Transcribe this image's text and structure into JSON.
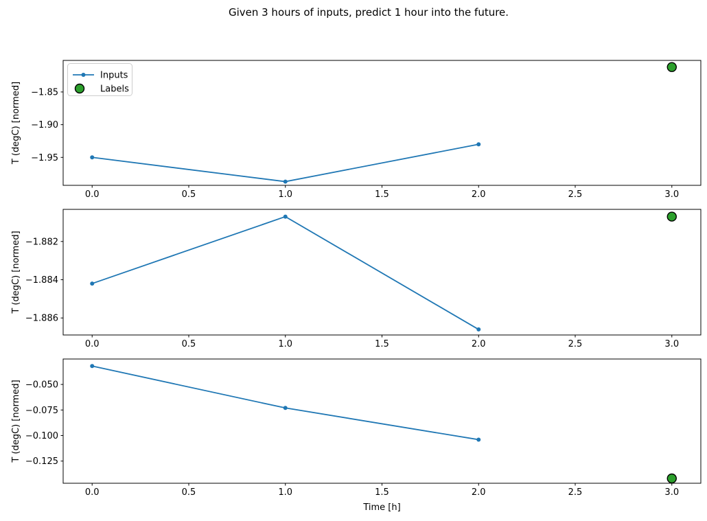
{
  "title": "Given 3 hours of inputs, predict 1 hour into the future.",
  "xlabel": "Time [h]",
  "colors": {
    "inputs": "#1f77b4",
    "labels_fill": "#2ca02c",
    "labels_edge": "#000000",
    "axis": "#000000",
    "legend_border": "#cccccc",
    "text": "#000000"
  },
  "legend": {
    "items": [
      {
        "label": "Inputs"
      },
      {
        "label": "Labels"
      }
    ]
  },
  "chart_data": [
    {
      "type": "line",
      "ylabel": "T (degC) [normed]",
      "series": [
        {
          "name": "Inputs",
          "style": "line+marker",
          "x": [
            0,
            1,
            2
          ],
          "y": [
            -1.95,
            -1.987,
            -1.93
          ]
        },
        {
          "name": "Labels",
          "style": "scatter",
          "x": [
            3
          ],
          "y": [
            -1.812
          ]
        }
      ],
      "xticks": [
        "0.0",
        "0.5",
        "1.0",
        "1.5",
        "2.0",
        "2.5",
        "3.0"
      ],
      "xtick_values": [
        0,
        0.5,
        1,
        1.5,
        2,
        2.5,
        3
      ],
      "yticks": [
        "−1.85",
        "−1.90",
        "−1.95"
      ],
      "ytick_values": [
        -1.85,
        -1.9,
        -1.95
      ],
      "xlim": [
        -0.15,
        3.15
      ],
      "ylim": [
        -1.9927,
        -1.8018
      ],
      "grid": false,
      "legend": true,
      "legend_position": "upper left"
    },
    {
      "type": "line",
      "ylabel": "T (degC) [normed]",
      "series": [
        {
          "name": "Inputs",
          "style": "line+marker",
          "x": [
            0,
            1,
            2
          ],
          "y": [
            -1.8842,
            -1.8807,
            -1.8866
          ]
        },
        {
          "name": "Labels",
          "style": "scatter",
          "x": [
            3
          ],
          "y": [
            -1.8807
          ]
        }
      ],
      "xticks": [
        "0.0",
        "0.5",
        "1.0",
        "1.5",
        "2.0",
        "2.5",
        "3.0"
      ],
      "xtick_values": [
        0,
        0.5,
        1,
        1.5,
        2,
        2.5,
        3
      ],
      "yticks": [
        "−1.882",
        "−1.884",
        "−1.886"
      ],
      "ytick_values": [
        -1.882,
        -1.884,
        -1.886
      ],
      "xlim": [
        -0.15,
        3.15
      ],
      "ylim": [
        -1.88689,
        -1.88032
      ],
      "grid": false,
      "legend": false
    },
    {
      "type": "line",
      "ylabel": "T (degC) [normed]",
      "series": [
        {
          "name": "Inputs",
          "style": "line+marker",
          "x": [
            0,
            1,
            2
          ],
          "y": [
            -0.032,
            -0.073,
            -0.104
          ]
        },
        {
          "name": "Labels",
          "style": "scatter",
          "x": [
            3
          ],
          "y": [
            -0.142
          ]
        }
      ],
      "xticks": [
        "0.0",
        "0.5",
        "1.0",
        "1.5",
        "2.0",
        "2.5",
        "3.0"
      ],
      "xtick_values": [
        0,
        0.5,
        1,
        1.5,
        2,
        2.5,
        3
      ],
      "yticks": [
        "−0.050",
        "−0.075",
        "−0.100",
        "−0.125"
      ],
      "ytick_values": [
        -0.05,
        -0.075,
        -0.1,
        -0.125
      ],
      "xlim": [
        -0.15,
        3.15
      ],
      "ylim": [
        -0.1467,
        -0.0251
      ],
      "grid": false,
      "legend": false
    }
  ]
}
